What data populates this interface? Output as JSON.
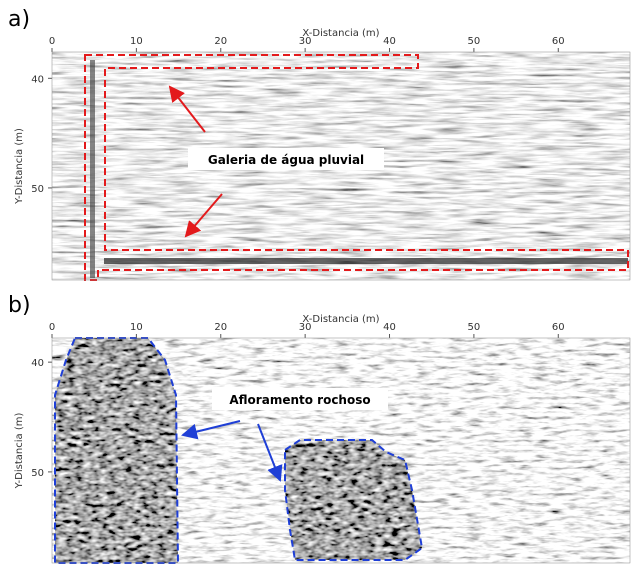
{
  "chart_data": [
    {
      "type": "image",
      "panel_label": "a)",
      "x_label": "X-Distancia (m)",
      "y_label": "Y-Distancia (m)",
      "xlim": [
        0,
        68.5
      ],
      "ylim": [
        58.4,
        37.6
      ],
      "xticks": [
        0,
        10,
        20,
        30,
        40,
        50,
        60
      ],
      "yticks": [
        40,
        50
      ],
      "annotation": "Galeria de água pluvial",
      "annotation_color": "#e31a1c"
    },
    {
      "type": "image",
      "panel_label": "b)",
      "x_label": "X-Distancia (m)",
      "y_label": "Y-Distancia (m)",
      "xlim": [
        0,
        68.5
      ],
      "ylim": [
        58.3,
        37.8
      ],
      "xticks": [
        0,
        10,
        20,
        30,
        40,
        50,
        60
      ],
      "yticks": [
        40,
        50
      ],
      "annotation": "Afloramento rochoso",
      "annotation_color": "#1f3fd6"
    }
  ]
}
